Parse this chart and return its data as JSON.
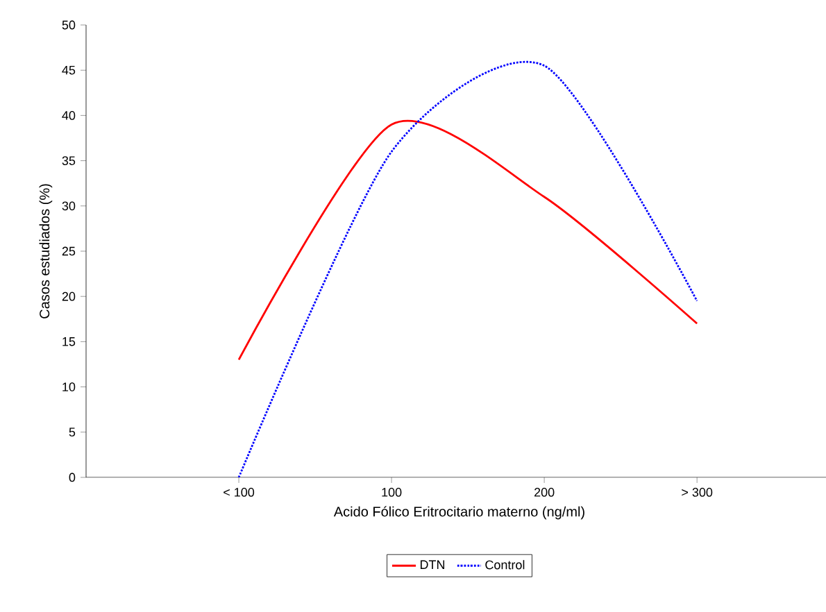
{
  "chart_data": {
    "type": "line",
    "xlabel": "Acido Fólico Eritrocitario materno (ng/ml)",
    "ylabel": "Casos estudiados (%)",
    "categories": [
      null,
      "< 100",
      "100",
      "200",
      "> 300",
      null
    ],
    "series": [
      {
        "name": "DTN",
        "color": "#ff0000",
        "line_style": "solid",
        "values": [
          null,
          13,
          39,
          31,
          17,
          null
        ]
      },
      {
        "name": "Control",
        "color": "#0000ff",
        "line_style": "dotted",
        "values": [
          null,
          0,
          36,
          45.5,
          19.5,
          null
        ]
      }
    ],
    "ylim": [
      0,
      50
    ],
    "yticks": [
      0,
      5,
      10,
      15,
      20,
      25,
      30,
      35,
      40,
      45,
      50
    ],
    "grid": false,
    "legend": "bottom",
    "marker": "none"
  }
}
